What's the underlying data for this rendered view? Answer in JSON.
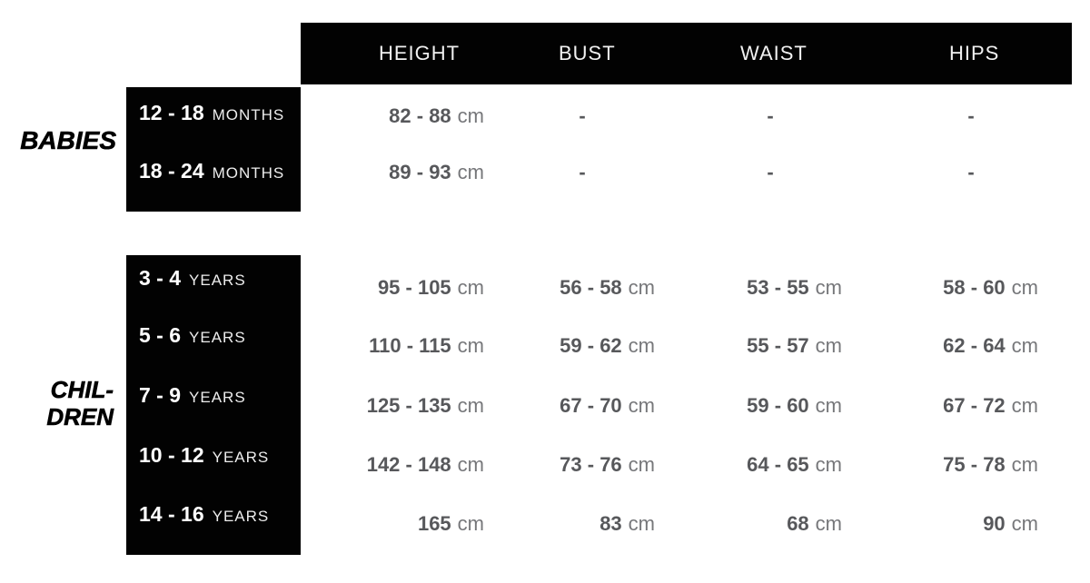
{
  "palette": {
    "box_black": "#020202",
    "header_text": "#f1f1f1",
    "age_number": "#ffffff",
    "age_unit": "#ededed",
    "value_number": "#57585b",
    "value_unit": "#76777a",
    "group_label": "#000000",
    "background": "#ffffff"
  },
  "header": {
    "columns": [
      "HEIGHT",
      "BUST",
      "WAIST",
      "HIPS"
    ]
  },
  "groups": [
    {
      "label": "BABIES",
      "label_lines": [
        "BABIES"
      ],
      "rows": [
        {
          "age": "12 - 18",
          "age_unit": "MONTHS",
          "cells": [
            {
              "v": "82 - 88",
              "u": "cm"
            },
            {
              "v": "-",
              "u": ""
            },
            {
              "v": "-",
              "u": ""
            },
            {
              "v": "-",
              "u": ""
            }
          ]
        },
        {
          "age": "18 - 24",
          "age_unit": "MONTHS",
          "cells": [
            {
              "v": "89 - 93",
              "u": "cm"
            },
            {
              "v": "-",
              "u": ""
            },
            {
              "v": "-",
              "u": ""
            },
            {
              "v": "-",
              "u": ""
            }
          ]
        }
      ]
    },
    {
      "label": "CHILDREN",
      "label_lines": [
        "CHIL-",
        "DREN"
      ],
      "rows": [
        {
          "age": "3 - 4",
          "age_unit": "YEARS",
          "cells": [
            {
              "v": "95 - 105",
              "u": "cm"
            },
            {
              "v": "56 - 58",
              "u": "cm"
            },
            {
              "v": "53 - 55",
              "u": "cm"
            },
            {
              "v": "58 - 60",
              "u": "cm"
            }
          ]
        },
        {
          "age": "5 - 6",
          "age_unit": "YEARS",
          "cells": [
            {
              "v": "110 - 115",
              "u": "cm"
            },
            {
              "v": "59 - 62",
              "u": "cm"
            },
            {
              "v": "55 - 57",
              "u": "cm"
            },
            {
              "v": "62 - 64",
              "u": "cm"
            }
          ]
        },
        {
          "age": "7 - 9",
          "age_unit": "YEARS",
          "cells": [
            {
              "v": "125 - 135",
              "u": "cm"
            },
            {
              "v": "67 - 70",
              "u": "cm"
            },
            {
              "v": "59 - 60",
              "u": "cm"
            },
            {
              "v": "67 - 72",
              "u": "cm"
            }
          ]
        },
        {
          "age": "10 - 12",
          "age_unit": "YEARS",
          "cells": [
            {
              "v": "142 - 148",
              "u": "cm"
            },
            {
              "v": "73 - 76",
              "u": "cm"
            },
            {
              "v": "64 - 65",
              "u": "cm"
            },
            {
              "v": "75 - 78",
              "u": "cm"
            }
          ]
        },
        {
          "age": "14 - 16",
          "age_unit": "YEARS",
          "cells": [
            {
              "v": "165",
              "u": "cm"
            },
            {
              "v": "83",
              "u": "cm"
            },
            {
              "v": "68",
              "u": "cm"
            },
            {
              "v": "90",
              "u": "cm"
            }
          ]
        }
      ]
    }
  ],
  "chart_data": {
    "type": "table",
    "columns": [
      "",
      "HEIGHT",
      "BUST",
      "WAIST",
      "HIPS"
    ],
    "sections": [
      {
        "group": "BABIES",
        "rows": [
          [
            "12 - 18 MONTHS",
            "82 - 88 cm",
            "-",
            "-",
            "-"
          ],
          [
            "18 - 24 MONTHS",
            "89 - 93 cm",
            "-",
            "-",
            "-"
          ]
        ]
      },
      {
        "group": "CHILDREN",
        "rows": [
          [
            "3 - 4 YEARS",
            "95 - 105 cm",
            "56 - 58 cm",
            "53 - 55 cm",
            "58 - 60 cm"
          ],
          [
            "5 - 6 YEARS",
            "110 - 115 cm",
            "59 - 62 cm",
            "55 - 57 cm",
            "62 - 64 cm"
          ],
          [
            "7 - 9 YEARS",
            "125 - 135 cm",
            "67 - 70 cm",
            "59 - 60 cm",
            "67 - 72 cm"
          ],
          [
            "10 - 12 YEARS",
            "142 - 148 cm",
            "73 - 76 cm",
            "64 - 65 cm",
            "75 - 78 cm"
          ],
          [
            "14 - 16 YEARS",
            "165 cm",
            "83 cm",
            "68 cm",
            "90 cm"
          ]
        ]
      }
    ]
  }
}
